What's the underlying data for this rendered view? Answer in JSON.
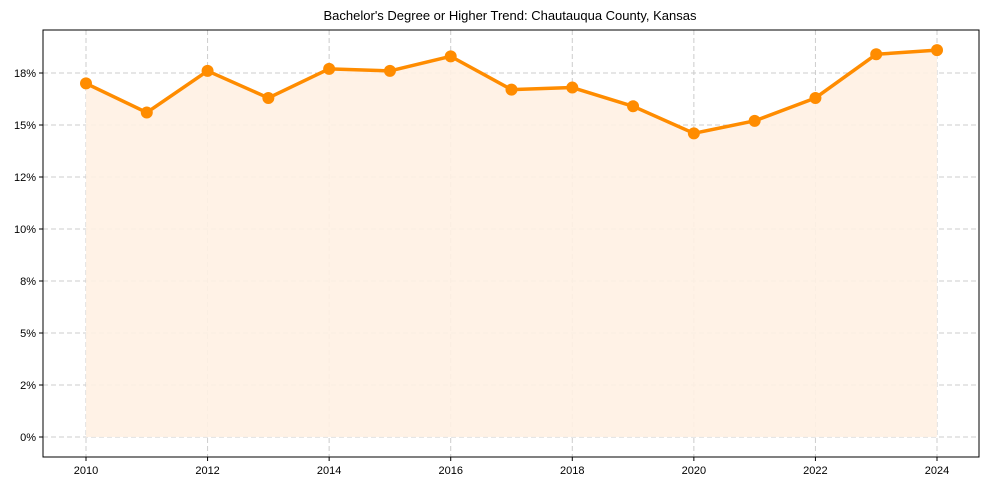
{
  "chart_data": {
    "type": "line",
    "title": "Bachelor's Degree or Higher Trend: Chautauqua County, Kansas",
    "xlabel": "",
    "ylabel": "",
    "x": [
      2010,
      2011,
      2012,
      2013,
      2014,
      2015,
      2016,
      2017,
      2018,
      2019,
      2020,
      2021,
      2022,
      2023,
      2024
    ],
    "series": [
      {
        "name": "Bachelor's Degree or Higher",
        "values": [
          17.0,
          15.6,
          17.6,
          16.3,
          17.7,
          17.6,
          18.3,
          16.7,
          16.8,
          15.9,
          14.6,
          15.2,
          16.3,
          18.4,
          18.6
        ],
        "color": "#ff8c00"
      }
    ],
    "x_ticks": [
      "2010",
      "2012",
      "2014",
      "2016",
      "2018",
      "2020",
      "2022",
      "2024"
    ],
    "y_ticks": [
      "0%",
      "2%",
      "5%",
      "8%",
      "10%",
      "12%",
      "15%",
      "18%"
    ],
    "y_tick_values": [
      0,
      2.5,
      5,
      7.5,
      10,
      12.5,
      15,
      17.5
    ],
    "ylim": [
      -0.9,
      20.5
    ],
    "xlim": [
      2009.3,
      2024.7
    ],
    "grid": true,
    "fill_color": "#fff1e3"
  }
}
